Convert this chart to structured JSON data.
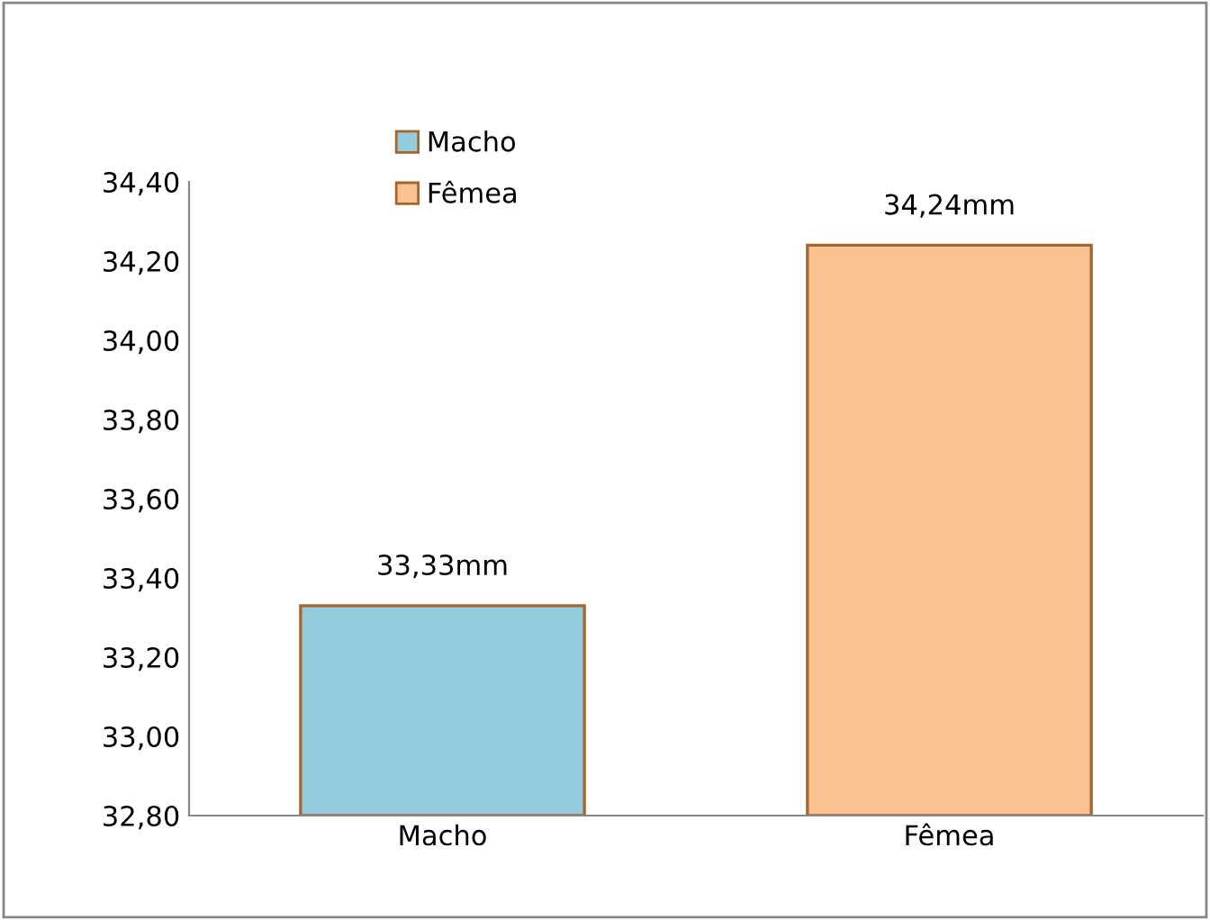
{
  "chart_data": {
    "type": "bar",
    "categories": [
      "Macho",
      "Fêmea"
    ],
    "series": [
      {
        "name": "Macho",
        "color": "#93cddd",
        "values": [
          33.33,
          null
        ],
        "value_labels": [
          "33,33mm",
          null
        ]
      },
      {
        "name": "Fêmea",
        "color": "#fac191",
        "values": [
          null,
          34.24
        ],
        "value_labels": [
          null,
          "34,24mm"
        ]
      }
    ],
    "ylim": [
      32.8,
      34.4
    ],
    "yticks": [
      {
        "value": 32.8,
        "label": "32,80"
      },
      {
        "value": 33.0,
        "label": "33,00"
      },
      {
        "value": 33.2,
        "label": "33,20"
      },
      {
        "value": 33.4,
        "label": "33,40"
      },
      {
        "value": 33.6,
        "label": "33,60"
      },
      {
        "value": 33.8,
        "label": "33,80"
      },
      {
        "value": 34.0,
        "label": "34,00"
      },
      {
        "value": 34.2,
        "label": "34,20"
      },
      {
        "value": 34.4,
        "label": "34,40"
      }
    ],
    "grid": false,
    "legend": "top left"
  }
}
